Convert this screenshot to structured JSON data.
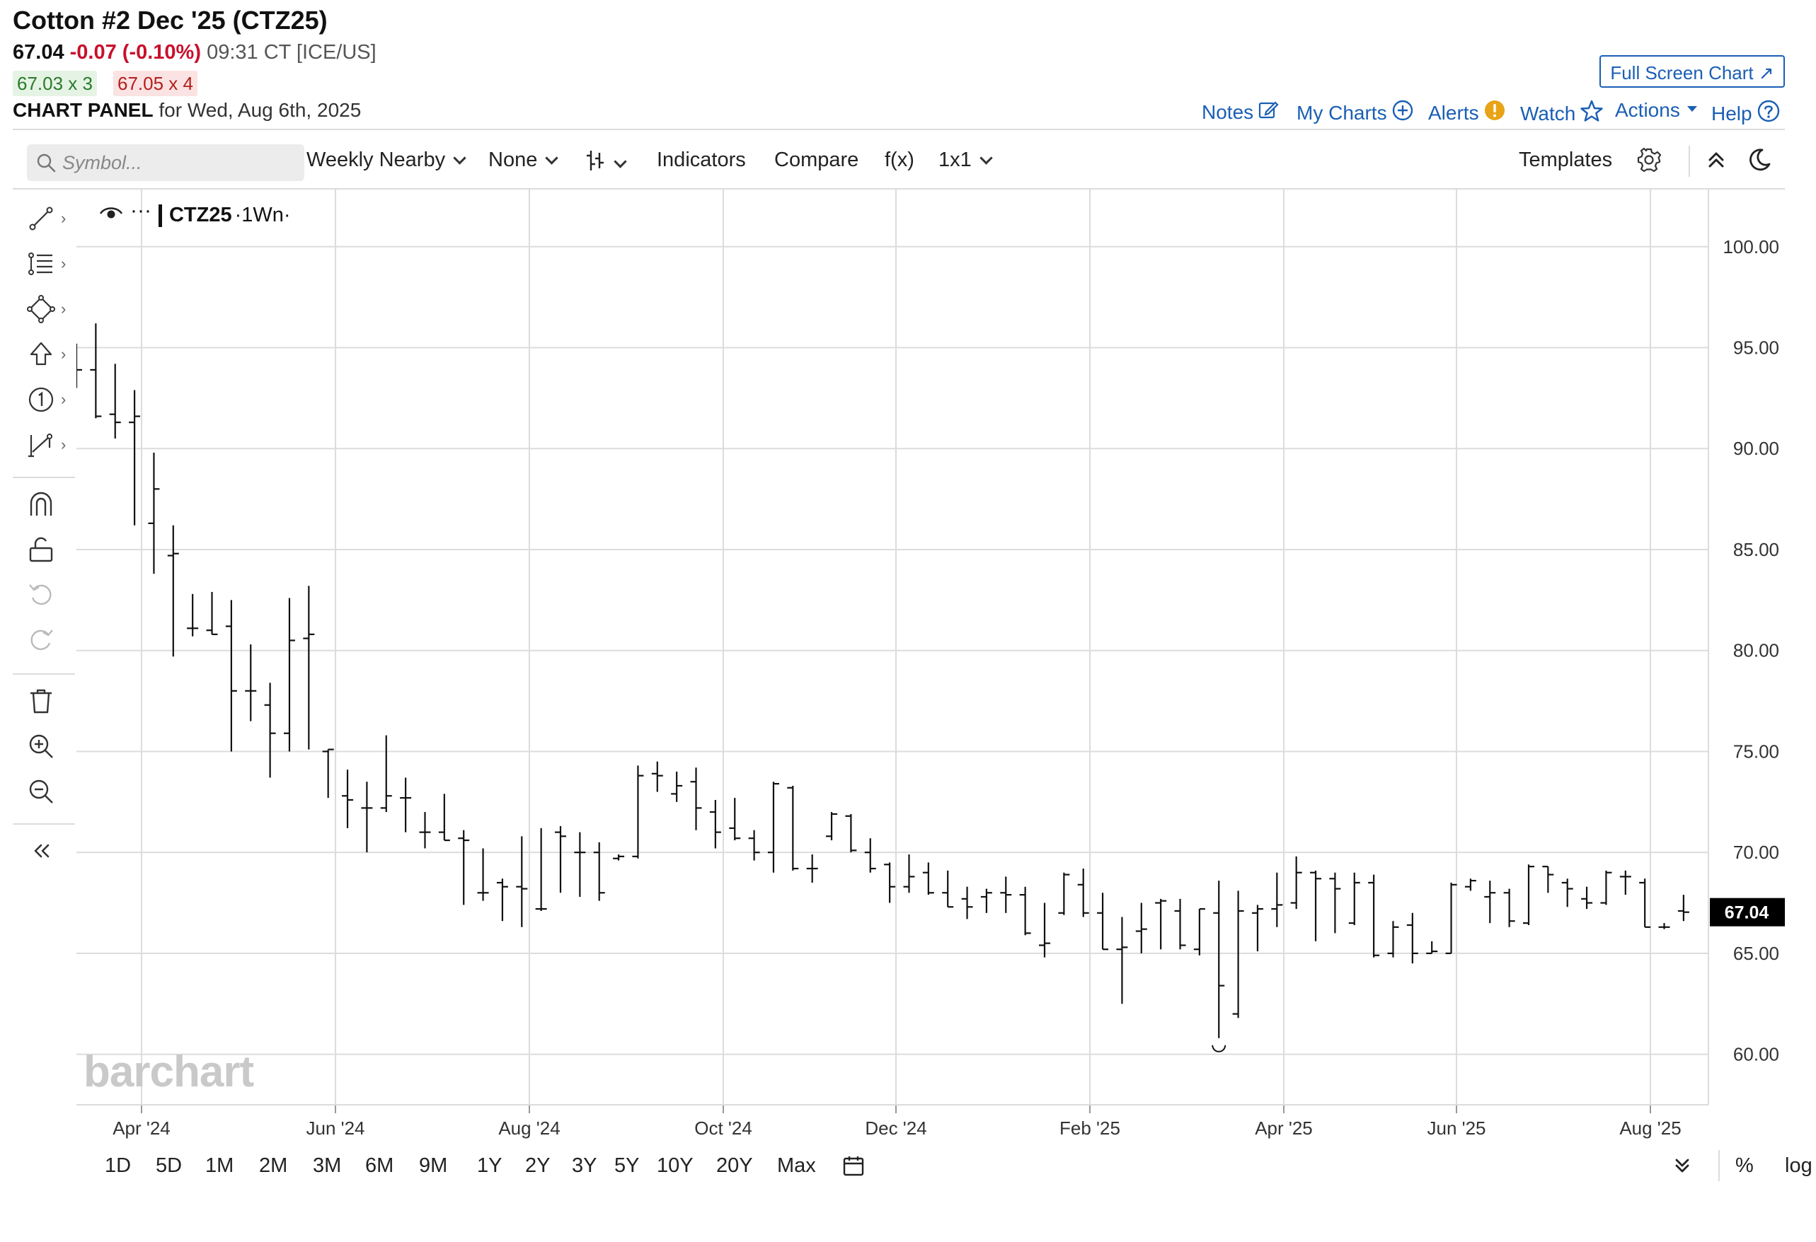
{
  "header": {
    "title": "Cotton #2 Dec '25 (CTZ25)",
    "last": "67.04",
    "change": "-0.07 (-0.10%)",
    "time_exchange": "09:31 CT [ICE/US]",
    "bid": "67.03 x 3",
    "ask": "67.05 x 4",
    "panel_label": "CHART PANEL",
    "panel_date": "for Wed, Aug 6th, 2025",
    "full_screen": "Full Screen Chart ↗"
  },
  "links": {
    "notes": "Notes",
    "my_charts": "My Charts",
    "alerts": "Alerts",
    "watch": "Watch",
    "actions": "Actions",
    "help": "Help"
  },
  "toolbar": {
    "search_placeholder": "Symbol...",
    "period": "Weekly Nearby",
    "overlay": "None",
    "indicators": "Indicators",
    "compare": "Compare",
    "fx": "f(x)",
    "layout": "1x1",
    "templates": "Templates"
  },
  "chart_label": {
    "symbol": "CTZ25",
    "interval": "·1Wn·"
  },
  "watermark": "barchart",
  "ranges": [
    "1D",
    "5D",
    "1M",
    "2M",
    "3M",
    "6M",
    "9M",
    "1Y",
    "2Y",
    "3Y",
    "5Y",
    "10Y",
    "20Y",
    "Max"
  ],
  "range_right": {
    "percent": "%",
    "log": "log"
  },
  "colors": {
    "accent": "#1a5fb4",
    "down": "#c8102e",
    "up": "#2a7a2a",
    "alert": "#e8a317"
  },
  "chart_data": {
    "type": "ohlc",
    "y_ticks": [
      "100.00",
      "95.00",
      "90.00",
      "85.00",
      "80.00",
      "75.00",
      "70.00",
      "65.00",
      "60.00"
    ],
    "ylim": [
      57.5,
      102.9
    ],
    "x_ticks": [
      "Apr '24",
      "Jun '24",
      "Aug '24",
      "Oct '24",
      "Dec '24",
      "Feb '25",
      "Apr '25",
      "Jun '25",
      "Aug '25"
    ],
    "last_price_label": "67.04",
    "bars": [
      {
        "o": 94.0,
        "h": 95.2,
        "l": 93.0,
        "c": 93.9
      },
      {
        "o": 93.9,
        "h": 96.2,
        "l": 91.5,
        "c": 91.6
      },
      {
        "o": 91.7,
        "h": 94.2,
        "l": 90.5,
        "c": 91.3
      },
      {
        "o": 91.3,
        "h": 92.9,
        "l": 86.2,
        "c": 91.6
      },
      {
        "o": 86.3,
        "h": 89.8,
        "l": 83.8,
        "c": 88.0
      },
      {
        "o": 84.7,
        "h": 86.2,
        "l": 79.7,
        "c": 84.8
      },
      {
        "o": 81.1,
        "h": 82.8,
        "l": 80.7,
        "c": 81.1
      },
      {
        "o": 81.0,
        "h": 82.9,
        "l": 80.8,
        "c": 80.8
      },
      {
        "o": 81.2,
        "h": 82.5,
        "l": 75.0,
        "c": 78.0
      },
      {
        "o": 78.0,
        "h": 80.3,
        "l": 76.5,
        "c": 78.0
      },
      {
        "o": 77.3,
        "h": 78.4,
        "l": 73.7,
        "c": 75.9
      },
      {
        "o": 75.9,
        "h": 82.6,
        "l": 75.0,
        "c": 80.5
      },
      {
        "o": 80.6,
        "h": 83.2,
        "l": 75.1,
        "c": 80.8
      },
      {
        "o": 75.0,
        "h": 75.1,
        "l": 72.7,
        "c": 75.1
      },
      {
        "o": 72.8,
        "h": 74.1,
        "l": 71.2,
        "c": 72.6
      },
      {
        "o": 72.2,
        "h": 73.5,
        "l": 70.0,
        "c": 72.2
      },
      {
        "o": 72.2,
        "h": 75.8,
        "l": 72.0,
        "c": 72.8
      },
      {
        "o": 72.7,
        "h": 73.7,
        "l": 71.0,
        "c": 72.7
      },
      {
        "o": 71.0,
        "h": 72.0,
        "l": 70.2,
        "c": 71.0
      },
      {
        "o": 71.0,
        "h": 72.9,
        "l": 70.6,
        "c": 70.6
      },
      {
        "o": 70.7,
        "h": 71.1,
        "l": 67.4,
        "c": 70.6
      },
      {
        "o": 68.0,
        "h": 70.2,
        "l": 67.6,
        "c": 68.0
      },
      {
        "o": 68.5,
        "h": 68.7,
        "l": 66.6,
        "c": 68.3
      },
      {
        "o": 68.3,
        "h": 70.8,
        "l": 66.3,
        "c": 68.2
      },
      {
        "o": 67.2,
        "h": 71.2,
        "l": 67.1,
        "c": 67.2
      },
      {
        "o": 71.0,
        "h": 71.3,
        "l": 68.0,
        "c": 70.8
      },
      {
        "o": 70.0,
        "h": 71.0,
        "l": 67.8,
        "c": 70.0
      },
      {
        "o": 70.0,
        "h": 70.5,
        "l": 67.6,
        "c": 68.0
      },
      {
        "o": 69.7,
        "h": 69.9,
        "l": 69.6,
        "c": 69.8
      },
      {
        "o": 69.8,
        "h": 74.3,
        "l": 69.7,
        "c": 73.8
      },
      {
        "o": 73.9,
        "h": 74.5,
        "l": 73.0,
        "c": 73.8
      },
      {
        "o": 72.9,
        "h": 74.0,
        "l": 72.5,
        "c": 73.3
      },
      {
        "o": 73.5,
        "h": 74.2,
        "l": 71.1,
        "c": 72.2
      },
      {
        "o": 72.0,
        "h": 72.6,
        "l": 70.2,
        "c": 71.0
      },
      {
        "o": 71.2,
        "h": 72.7,
        "l": 70.6,
        "c": 70.7
      },
      {
        "o": 70.7,
        "h": 71.1,
        "l": 69.6,
        "c": 70.0
      },
      {
        "o": 70.0,
        "h": 73.5,
        "l": 69.0,
        "c": 73.4
      },
      {
        "o": 73.2,
        "h": 73.3,
        "l": 69.1,
        "c": 69.2
      },
      {
        "o": 69.2,
        "h": 69.9,
        "l": 68.5,
        "c": 69.2
      },
      {
        "o": 70.8,
        "h": 72.0,
        "l": 70.6,
        "c": 71.9
      },
      {
        "o": 71.8,
        "h": 71.9,
        "l": 70.0,
        "c": 70.1
      },
      {
        "o": 70.0,
        "h": 70.7,
        "l": 69.0,
        "c": 69.2
      },
      {
        "o": 69.4,
        "h": 69.5,
        "l": 67.5,
        "c": 68.3
      },
      {
        "o": 68.3,
        "h": 69.9,
        "l": 68.0,
        "c": 68.8
      },
      {
        "o": 69.0,
        "h": 69.5,
        "l": 67.9,
        "c": 68.0
      },
      {
        "o": 68.0,
        "h": 69.1,
        "l": 67.3,
        "c": 67.3
      },
      {
        "o": 67.7,
        "h": 68.3,
        "l": 66.7,
        "c": 67.3
      },
      {
        "o": 67.8,
        "h": 68.2,
        "l": 67.0,
        "c": 68.0
      },
      {
        "o": 68.0,
        "h": 68.8,
        "l": 67.0,
        "c": 67.9
      },
      {
        "o": 67.9,
        "h": 68.3,
        "l": 65.9,
        "c": 66.0
      },
      {
        "o": 65.4,
        "h": 67.5,
        "l": 64.8,
        "c": 65.5
      },
      {
        "o": 67.0,
        "h": 69.0,
        "l": 66.9,
        "c": 68.9
      },
      {
        "o": 68.4,
        "h": 69.2,
        "l": 66.8,
        "c": 67.0
      },
      {
        "o": 67.0,
        "h": 68.0,
        "l": 65.2,
        "c": 65.2
      },
      {
        "o": 65.2,
        "h": 66.8,
        "l": 62.5,
        "c": 65.3
      },
      {
        "o": 66.1,
        "h": 67.5,
        "l": 65.0,
        "c": 66.2
      },
      {
        "o": 67.5,
        "h": 67.7,
        "l": 65.2,
        "c": 67.6
      },
      {
        "o": 67.1,
        "h": 67.7,
        "l": 65.2,
        "c": 65.4
      },
      {
        "o": 65.2,
        "h": 67.2,
        "l": 64.9,
        "c": 67.2
      },
      {
        "o": 67.0,
        "h": 68.6,
        "l": 60.8,
        "c": 63.4
      },
      {
        "o": 62.0,
        "h": 68.1,
        "l": 61.8,
        "c": 67.1
      },
      {
        "o": 67.0,
        "h": 67.4,
        "l": 65.1,
        "c": 67.2
      },
      {
        "o": 67.2,
        "h": 69.0,
        "l": 66.3,
        "c": 67.4
      },
      {
        "o": 67.5,
        "h": 69.8,
        "l": 67.2,
        "c": 69.0
      },
      {
        "o": 69.0,
        "h": 69.1,
        "l": 65.6,
        "c": 68.7
      },
      {
        "o": 68.7,
        "h": 69.0,
        "l": 66.0,
        "c": 68.2
      },
      {
        "o": 66.5,
        "h": 69.0,
        "l": 66.4,
        "c": 68.5
      },
      {
        "o": 68.5,
        "h": 68.9,
        "l": 64.8,
        "c": 64.9
      },
      {
        "o": 65.0,
        "h": 66.6,
        "l": 64.8,
        "c": 66.3
      },
      {
        "o": 66.4,
        "h": 67.0,
        "l": 64.5,
        "c": 65.0
      },
      {
        "o": 65.0,
        "h": 65.6,
        "l": 65.0,
        "c": 65.1
      },
      {
        "o": 65.0,
        "h": 68.5,
        "l": 65.0,
        "c": 68.4
      },
      {
        "o": 68.3,
        "h": 68.7,
        "l": 68.1,
        "c": 68.6
      },
      {
        "o": 67.8,
        "h": 68.6,
        "l": 66.5,
        "c": 68.0
      },
      {
        "o": 68.0,
        "h": 68.2,
        "l": 66.3,
        "c": 66.6
      },
      {
        "o": 66.5,
        "h": 69.4,
        "l": 66.4,
        "c": 69.3
      },
      {
        "o": 69.3,
        "h": 69.3,
        "l": 68.0,
        "c": 68.9
      },
      {
        "o": 68.5,
        "h": 68.7,
        "l": 67.3,
        "c": 68.2
      },
      {
        "o": 67.7,
        "h": 68.3,
        "l": 67.2,
        "c": 67.5
      },
      {
        "o": 67.5,
        "h": 69.1,
        "l": 67.4,
        "c": 69.0
      },
      {
        "o": 68.8,
        "h": 69.1,
        "l": 67.9,
        "c": 68.8
      },
      {
        "o": 68.5,
        "h": 68.7,
        "l": 66.3,
        "c": 66.3
      },
      {
        "o": 66.3,
        "h": 66.5,
        "l": 66.2,
        "c": 66.3
      },
      {
        "o": 67.1,
        "h": 67.9,
        "l": 66.6,
        "c": 67.04
      }
    ]
  }
}
